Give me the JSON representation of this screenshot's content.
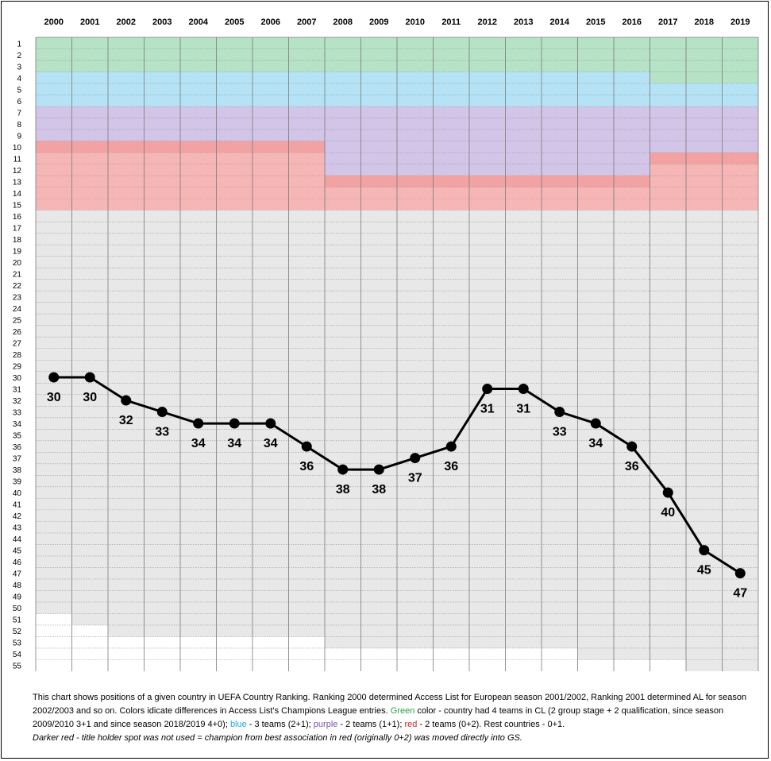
{
  "chart_data": {
    "type": "line",
    "x": [
      "2000",
      "2001",
      "2002",
      "2003",
      "2004",
      "2005",
      "2006",
      "2007",
      "2008",
      "2009",
      "2010",
      "2011",
      "2012",
      "2013",
      "2014",
      "2015",
      "2016",
      "2017",
      "2018",
      "2019"
    ],
    "values": [
      30,
      30,
      32,
      33,
      34,
      34,
      34,
      36,
      38,
      38,
      37,
      36,
      31,
      31,
      33,
      34,
      36,
      40,
      45,
      47
    ],
    "y_tick_labels": [
      "1",
      "2",
      "3",
      "4",
      "5",
      "6",
      "7",
      "8",
      "9",
      "10",
      "11",
      "12",
      "13",
      "14",
      "15",
      "16",
      "17",
      "18",
      "19",
      "20",
      "21",
      "22",
      "23",
      "24",
      "25",
      "26",
      "27",
      "28",
      "29",
      "30",
      "31",
      "32",
      "33",
      "34",
      "35",
      "36",
      "37",
      "38",
      "39",
      "40",
      "41",
      "42",
      "43",
      "44",
      "45",
      "46",
      "47",
      "48",
      "49",
      "50",
      "51",
      "52",
      "53",
      "54",
      "55"
    ],
    "ylim": [
      1,
      55
    ],
    "y_inverted": true,
    "grid": true,
    "bands": [
      {
        "category": "green",
        "color": "#b6e2c6",
        "ranges": [
          [
            1,
            3
          ],
          [
            1,
            3
          ],
          [
            1,
            3
          ],
          [
            1,
            3
          ],
          [
            1,
            3
          ],
          [
            1,
            3
          ],
          [
            1,
            3
          ],
          [
            1,
            3
          ],
          [
            1,
            3
          ],
          [
            1,
            3
          ],
          [
            1,
            3
          ],
          [
            1,
            3
          ],
          [
            1,
            3
          ],
          [
            1,
            3
          ],
          [
            1,
            3
          ],
          [
            1,
            3
          ],
          [
            1,
            3
          ],
          [
            1,
            4
          ],
          [
            1,
            4
          ],
          [
            1,
            4
          ]
        ]
      },
      {
        "category": "blue",
        "color": "#b5e3f5",
        "ranges": [
          [
            4,
            6
          ],
          [
            4,
            6
          ],
          [
            4,
            6
          ],
          [
            4,
            6
          ],
          [
            4,
            6
          ],
          [
            4,
            6
          ],
          [
            4,
            6
          ],
          [
            4,
            6
          ],
          [
            4,
            6
          ],
          [
            4,
            6
          ],
          [
            4,
            6
          ],
          [
            4,
            6
          ],
          [
            4,
            6
          ],
          [
            4,
            6
          ],
          [
            4,
            6
          ],
          [
            4,
            6
          ],
          [
            4,
            6
          ],
          [
            5,
            6
          ],
          [
            5,
            6
          ],
          [
            5,
            6
          ]
        ]
      },
      {
        "category": "purple",
        "color": "#d2c5e8",
        "ranges": [
          [
            7,
            9
          ],
          [
            7,
            9
          ],
          [
            7,
            9
          ],
          [
            7,
            9
          ],
          [
            7,
            9
          ],
          [
            7,
            9
          ],
          [
            7,
            9
          ],
          [
            7,
            9
          ],
          [
            7,
            12
          ],
          [
            7,
            12
          ],
          [
            7,
            12
          ],
          [
            7,
            12
          ],
          [
            7,
            12
          ],
          [
            7,
            12
          ],
          [
            7,
            12
          ],
          [
            7,
            12
          ],
          [
            7,
            12
          ],
          [
            7,
            10
          ],
          [
            7,
            10
          ],
          [
            7,
            10
          ]
        ]
      },
      {
        "category": "red",
        "color": "#f6b6b6",
        "ranges": [
          [
            10,
            15
          ],
          [
            10,
            15
          ],
          [
            10,
            15
          ],
          [
            10,
            15
          ],
          [
            10,
            15
          ],
          [
            10,
            15
          ],
          [
            10,
            15
          ],
          [
            10,
            15
          ],
          [
            13,
            15
          ],
          [
            13,
            15
          ],
          [
            13,
            15
          ],
          [
            13,
            15
          ],
          [
            13,
            15
          ],
          [
            13,
            15
          ],
          [
            13,
            15
          ],
          [
            13,
            15
          ],
          [
            13,
            15
          ],
          [
            11,
            15
          ],
          [
            11,
            15
          ],
          [
            11,
            15
          ]
        ]
      },
      {
        "category": "grey",
        "color": "#e8e8e8",
        "ranges": [
          [
            16,
            50
          ],
          [
            16,
            51
          ],
          [
            16,
            52
          ],
          [
            16,
            52
          ],
          [
            16,
            52
          ],
          [
            16,
            52
          ],
          [
            16,
            52
          ],
          [
            16,
            52
          ],
          [
            16,
            53
          ],
          [
            16,
            53
          ],
          [
            16,
            53
          ],
          [
            16,
            53
          ],
          [
            16,
            53
          ],
          [
            16,
            53
          ],
          [
            16,
            53
          ],
          [
            16,
            54
          ],
          [
            16,
            54
          ],
          [
            16,
            54
          ],
          [
            16,
            55
          ],
          [
            16,
            55
          ]
        ]
      }
    ],
    "dark_red": {
      "color": "#f2a2a2",
      "ranges": [
        [
          10,
          10
        ],
        [
          10,
          10
        ],
        [
          10,
          10
        ],
        [
          10,
          10
        ],
        [
          10,
          10
        ],
        [
          10,
          10
        ],
        [
          10,
          10
        ],
        [
          10,
          10
        ],
        [
          13,
          13
        ],
        [
          13,
          13
        ],
        [
          13,
          13
        ],
        [
          13,
          13
        ],
        [
          13,
          13
        ],
        [
          13,
          13
        ],
        [
          13,
          13
        ],
        [
          13,
          13
        ],
        [
          13,
          13
        ],
        [
          11,
          11
        ],
        [
          11,
          11
        ],
        [
          11,
          11
        ]
      ]
    },
    "line_color": "#000000"
  },
  "caption": {
    "part1": "This chart shows positions of a given country in UEFA Country Ranking. Ranking 2000 determined Access List for European season 2001/2002, Ranking 2001 determined AL for season 2002/2003 and so on.  Colors idicate differences in Access List's Champions League entries. ",
    "green_word": "Green",
    "part2": " color - country had 4 teams in CL (2 group stage + 2 qualification, since season 2009/2010 3+1 and since season 2018/2019  4+0); ",
    "blue_word": "blue",
    "part3": " - 3 teams  (2+1); ",
    "purple_word": "purple",
    "part4": " - 2 teams (1+1); ",
    "red_word": "red",
    "part5": " - 2 teams (0+2). Rest countries - 0+1.",
    "italic_line": "Darker red - title holder spot was not used = champion from best association in red (originally 0+2) was moved directly into GS."
  }
}
